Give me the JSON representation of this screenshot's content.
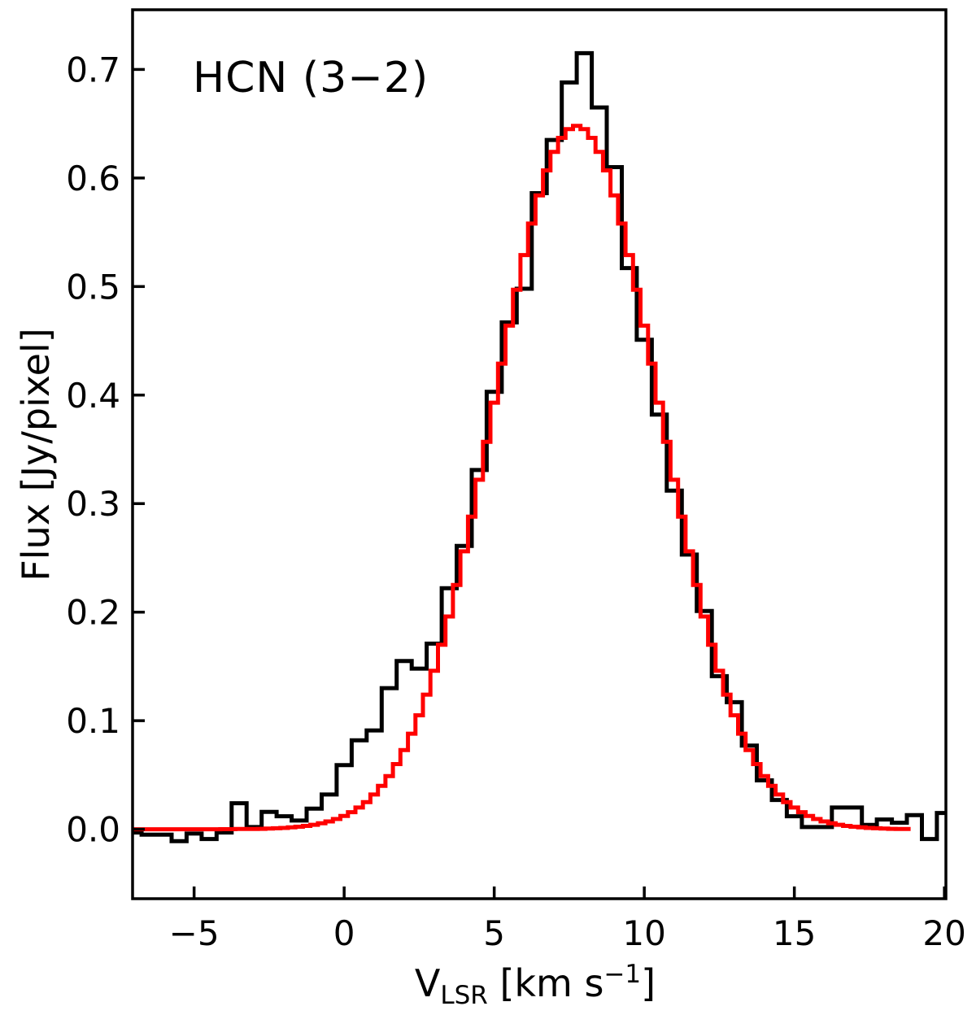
{
  "page": {
    "background": "#ffffff"
  },
  "chart_data": {
    "type": "step-histogram",
    "title": "HCN (3−2)",
    "ylabel": "Flux [Jy/pixel]",
    "xlabel_plain": "V_LSR [km s−1]",
    "xlabel_parts": [
      {
        "t": "V",
        "style": "main"
      },
      {
        "t": "LSR",
        "style": "sub"
      },
      {
        "t": " [km s",
        "style": "main"
      },
      {
        "t": "−1",
        "style": "sup"
      },
      {
        "t": "]",
        "style": "main"
      }
    ],
    "xlim": [
      -7.05,
      20.05
    ],
    "ylim": [
      -0.064,
      0.755
    ],
    "grid": false,
    "legend": "none",
    "x_ticks": {
      "values": [
        -5,
        0,
        5,
        10,
        15,
        20
      ],
      "labels": [
        "−5",
        "0",
        "5",
        "10",
        "15",
        "20"
      ]
    },
    "y_ticks": {
      "values": [
        0.0,
        0.1,
        0.2,
        0.3,
        0.4,
        0.5,
        0.6,
        0.7
      ],
      "labels": [
        "0.0",
        "0.1",
        "0.2",
        "0.3",
        "0.4",
        "0.5",
        "0.6",
        "0.7"
      ]
    },
    "series": [
      {
        "name": "observed-spectrum",
        "color": "#000000",
        "line_width": 5,
        "style": "step",
        "bin_width": 0.5,
        "x_start": -7.0,
        "x_step": 0.5,
        "y": [
          -0.003,
          -0.005,
          -0.005,
          -0.011,
          -0.004,
          -0.009,
          -0.003,
          0.024,
          0.002,
          0.016,
          0.012,
          0.008,
          0.019,
          0.032,
          0.059,
          0.082,
          0.091,
          0.13,
          0.155,
          0.148,
          0.171,
          0.222,
          0.261,
          0.331,
          0.403,
          0.467,
          0.498,
          0.586,
          0.635,
          0.688,
          0.715,
          0.665,
          0.61,
          0.517,
          0.451,
          0.382,
          0.312,
          0.253,
          0.201,
          0.141,
          0.117,
          0.077,
          0.045,
          0.027,
          0.012,
          0.002,
          0.002,
          0.02,
          0.02,
          0.004,
          0.009,
          0.006,
          0.013,
          -0.009,
          0.015
        ]
      },
      {
        "name": "gaussian-fit",
        "color": "#ff0000",
        "line_width": 5,
        "style": "step",
        "bin_width": 0.25,
        "fit_params": {
          "amplitude": 0.648,
          "center": 7.75,
          "sigma": 2.75
        },
        "x_start": -7.0,
        "x_step": 0.25,
        "y": [
          0,
          0,
          0,
          0,
          0,
          0,
          0,
          0,
          0,
          0,
          0,
          0,
          0.0001,
          0.0001,
          0.0002,
          0.0002,
          0.0003,
          0.0004,
          0.0006,
          0.0009,
          0.0012,
          0.0017,
          0.0023,
          0.0031,
          0.0041,
          0.0055,
          0.0072,
          0.0094,
          0.0122,
          0.0157,
          0.02,
          0.025,
          0.032,
          0.04,
          0.049,
          0.06,
          0.073,
          0.088,
          0.105,
          0.124,
          0.146,
          0.17,
          0.196,
          0.225,
          0.256,
          0.288,
          0.322,
          0.357,
          0.393,
          0.429,
          0.464,
          0.497,
          0.529,
          0.558,
          0.584,
          0.607,
          0.624,
          0.637,
          0.645,
          0.648,
          0.645,
          0.637,
          0.624,
          0.607,
          0.584,
          0.558,
          0.529,
          0.497,
          0.464,
          0.429,
          0.393,
          0.357,
          0.322,
          0.288,
          0.256,
          0.225,
          0.196,
          0.17,
          0.146,
          0.124,
          0.105,
          0.088,
          0.073,
          0.06,
          0.049,
          0.04,
          0.032,
          0.025,
          0.02,
          0.0157,
          0.0122,
          0.0094,
          0.0072,
          0.0055,
          0.0041,
          0.0031,
          0.0023,
          0.0017,
          0.0012,
          0.0009,
          0.0006,
          0.0004,
          0.0003,
          0.0002
        ]
      }
    ]
  }
}
